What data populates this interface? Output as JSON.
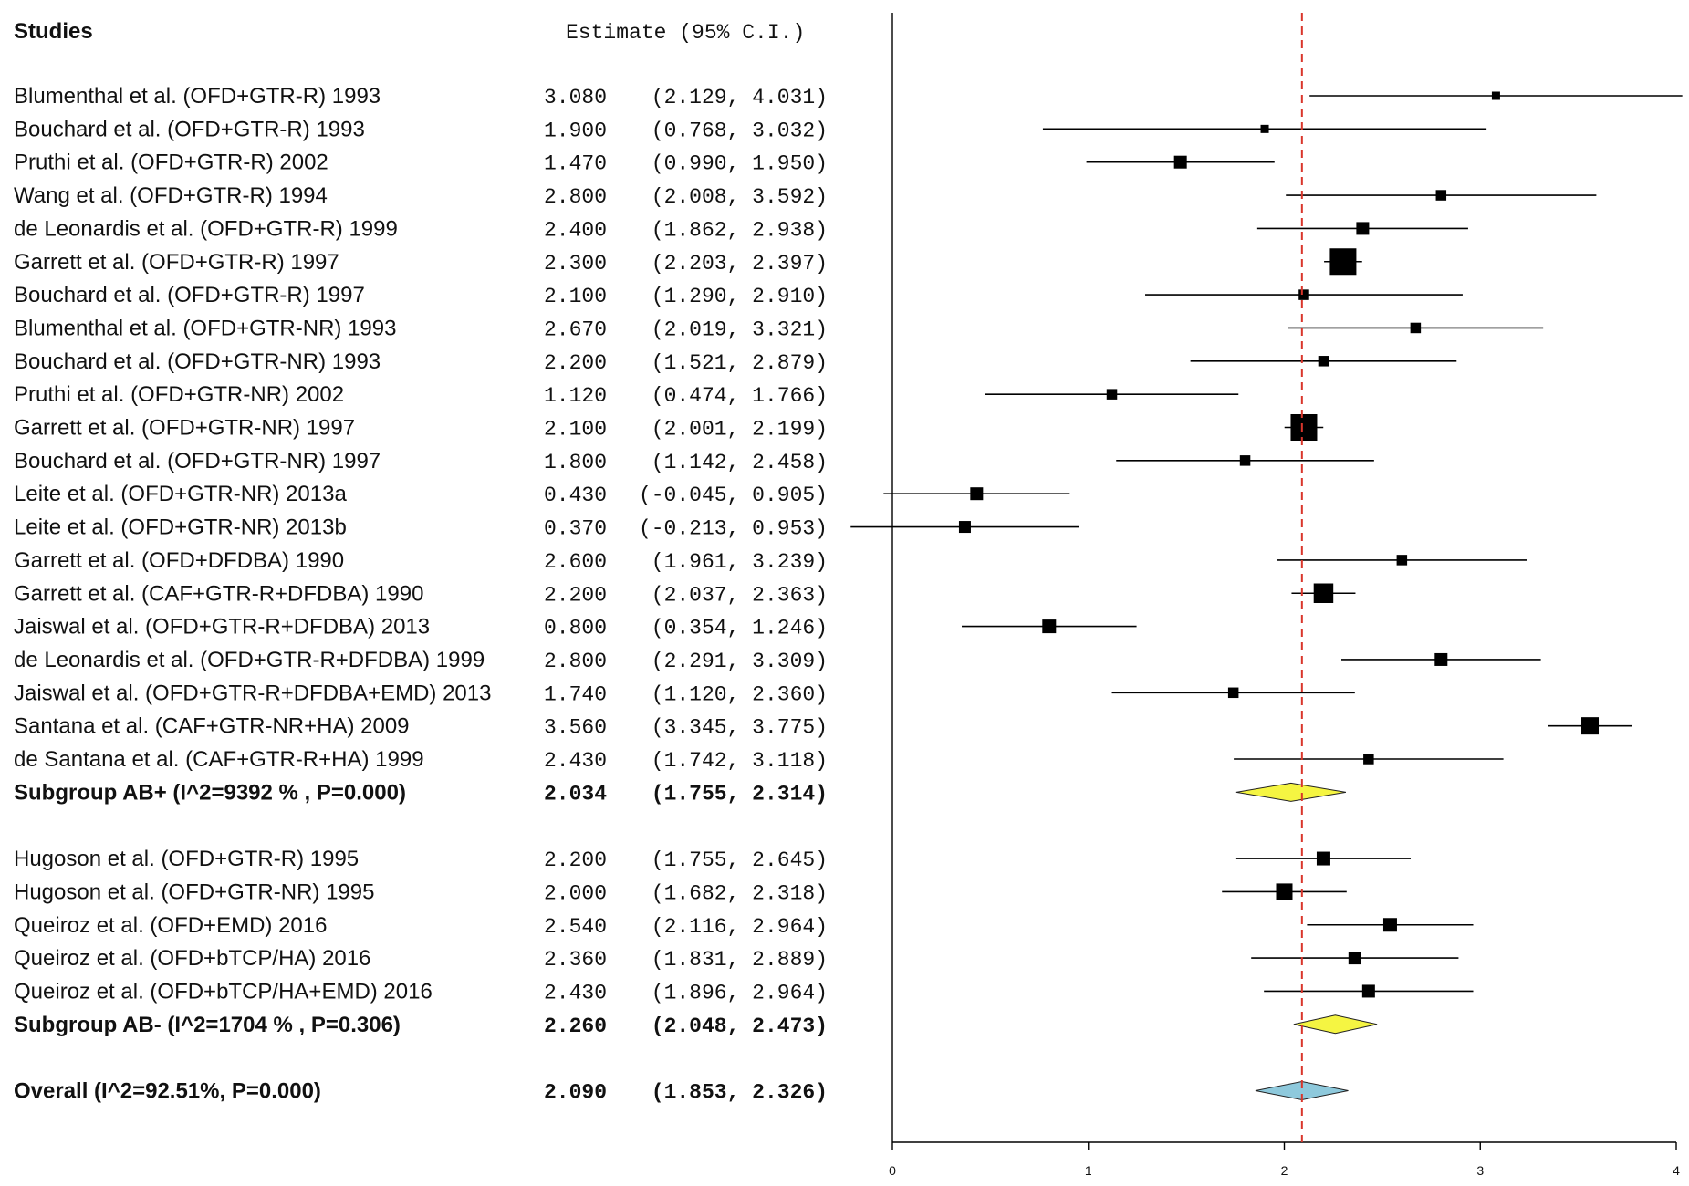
{
  "chart_data": {
    "type": "forest",
    "header_studies": "Studies",
    "header_estimate": "Estimate (95% C.I.)",
    "x_ticks": [
      "0",
      "1",
      "2",
      "3",
      "4"
    ],
    "xlim": [
      0,
      4
    ],
    "reference_line": 2.09,
    "rows": [
      {
        "kind": "study",
        "label": "Blumenthal et al. (OFD+GTR-R) 1993",
        "est": "3.080",
        "ci": "(2.129, 4.031)",
        "value": 3.08,
        "lo": 2.129,
        "hi": 4.031,
        "weight": 1
      },
      {
        "kind": "study",
        "label": "Bouchard et al. (OFD+GTR-R) 1993",
        "est": "1.900",
        "ci": "(0.768, 3.032)",
        "value": 1.9,
        "lo": 0.768,
        "hi": 3.032,
        "weight": 1
      },
      {
        "kind": "study",
        "label": "Pruthi et al. (OFD+GTR-R) 2002",
        "est": "1.470",
        "ci": "(0.990, 1.950)",
        "value": 1.47,
        "lo": 0.99,
        "hi": 1.95,
        "weight": 2
      },
      {
        "kind": "study",
        "label": "Wang et al. (OFD+GTR-R) 1994",
        "est": "2.800",
        "ci": "(2.008, 3.592)",
        "value": 2.8,
        "lo": 2.008,
        "hi": 3.592,
        "weight": 1.5
      },
      {
        "kind": "study",
        "label": "de Leonardis et al. (OFD+GTR-R) 1999",
        "est": "2.400",
        "ci": "(1.862, 2.938)",
        "value": 2.4,
        "lo": 1.862,
        "hi": 2.938,
        "weight": 2
      },
      {
        "kind": "study",
        "label": "Garrett et al. (OFD+GTR-R) 1997",
        "est": "2.300",
        "ci": "(2.203, 2.397)",
        "value": 2.3,
        "lo": 2.203,
        "hi": 2.397,
        "weight": 5
      },
      {
        "kind": "study",
        "label": "Bouchard et al. (OFD+GTR-R) 1997",
        "est": "2.100",
        "ci": "(1.290, 2.910)",
        "value": 2.1,
        "lo": 1.29,
        "hi": 2.91,
        "weight": 1.5
      },
      {
        "kind": "study",
        "label": "Blumenthal et al. (OFD+GTR-NR) 1993",
        "est": "2.670",
        "ci": "(2.019, 3.321)",
        "value": 2.67,
        "lo": 2.019,
        "hi": 3.321,
        "weight": 1.5
      },
      {
        "kind": "study",
        "label": "Bouchard et al. (OFD+GTR-NR) 1993",
        "est": "2.200",
        "ci": "(1.521, 2.879)",
        "value": 2.2,
        "lo": 1.521,
        "hi": 2.879,
        "weight": 1.5
      },
      {
        "kind": "study",
        "label": "Pruthi et al. (OFD+GTR-NR) 2002",
        "est": "1.120",
        "ci": "(0.474, 1.766)",
        "value": 1.12,
        "lo": 0.474,
        "hi": 1.766,
        "weight": 1.5
      },
      {
        "kind": "study",
        "label": "Garrett et al. (OFD+GTR-NR) 1997",
        "est": "2.100",
        "ci": "(2.001, 2.199)",
        "value": 2.1,
        "lo": 2.001,
        "hi": 2.199,
        "weight": 5
      },
      {
        "kind": "study",
        "label": "Bouchard et al. (OFD+GTR-NR) 1997",
        "est": "1.800",
        "ci": "(1.142, 2.458)",
        "value": 1.8,
        "lo": 1.142,
        "hi": 2.458,
        "weight": 1.5
      },
      {
        "kind": "study",
        "label": "Leite et al. (OFD+GTR-NR) 2013a",
        "est": "0.430",
        "ci": "(-0.045, 0.905)",
        "value": 0.43,
        "lo": -0.045,
        "hi": 0.905,
        "weight": 2
      },
      {
        "kind": "study",
        "label": "Leite et al. (OFD+GTR-NR) 2013b",
        "est": "0.370",
        "ci": "(-0.213, 0.953)",
        "value": 0.37,
        "lo": -0.213,
        "hi": 0.953,
        "weight": 1.8
      },
      {
        "kind": "study",
        "label": "Garrett et al. (OFD+DFDBA) 1990",
        "est": "2.600",
        "ci": "(1.961, 3.239)",
        "value": 2.6,
        "lo": 1.961,
        "hi": 3.239,
        "weight": 1.5
      },
      {
        "kind": "study",
        "label": "Garrett et al. (CAF+GTR-R+DFDBA) 1990",
        "est": "2.200",
        "ci": "(2.037, 2.363)",
        "value": 2.2,
        "lo": 2.037,
        "hi": 2.363,
        "weight": 3.5
      },
      {
        "kind": "study",
        "label": "Jaiswal et al. (OFD+GTR-R+DFDBA) 2013",
        "est": "0.800",
        "ci": "(0.354, 1.246)",
        "value": 0.8,
        "lo": 0.354,
        "hi": 1.246,
        "weight": 2.2
      },
      {
        "kind": "study",
        "label": "de Leonardis et al. (OFD+GTR-R+DFDBA) 1999",
        "est": "2.800",
        "ci": "(2.291, 3.309)",
        "value": 2.8,
        "lo": 2.291,
        "hi": 3.309,
        "weight": 2
      },
      {
        "kind": "study",
        "label": "Jaiswal et al. (OFD+GTR-R+DFDBA+EMD) 2013",
        "est": "1.740",
        "ci": "(1.120, 2.360)",
        "value": 1.74,
        "lo": 1.12,
        "hi": 2.36,
        "weight": 1.5
      },
      {
        "kind": "study",
        "label": "Santana et al. (CAF+GTR-NR+HA) 2009",
        "est": "3.560",
        "ci": "(3.345, 3.775)",
        "value": 3.56,
        "lo": 3.345,
        "hi": 3.775,
        "weight": 3
      },
      {
        "kind": "study",
        "label": "de Santana et al. (CAF+GTR-R+HA) 1999",
        "est": "2.430",
        "ci": "(1.742, 3.118)",
        "value": 2.43,
        "lo": 1.742,
        "hi": 3.118,
        "weight": 1.5
      },
      {
        "kind": "subgroup",
        "label": "Subgroup AB+ (I^2=9392 % , P=0.000)",
        "est": "2.034",
        "ci": "(1.755, 2.314)",
        "value": 2.034,
        "lo": 1.755,
        "hi": 2.314,
        "color": "#f5f542"
      },
      {
        "kind": "blank"
      },
      {
        "kind": "study",
        "label": "Hugoson et al. (OFD+GTR-R) 1995",
        "est": "2.200",
        "ci": "(1.755, 2.645)",
        "value": 2.2,
        "lo": 1.755,
        "hi": 2.645,
        "weight": 2.2
      },
      {
        "kind": "study",
        "label": "Hugoson et al. (OFD+GTR-NR) 1995",
        "est": "2.000",
        "ci": "(1.682, 2.318)",
        "value": 2.0,
        "lo": 1.682,
        "hi": 2.318,
        "weight": 2.8
      },
      {
        "kind": "study",
        "label": "Queiroz et al. (OFD+EMD) 2016",
        "est": "2.540",
        "ci": "(2.116, 2.964)",
        "value": 2.54,
        "lo": 2.116,
        "hi": 2.964,
        "weight": 2.2
      },
      {
        "kind": "study",
        "label": "Queiroz et al. (OFD+bTCP/HA) 2016",
        "est": "2.360",
        "ci": "(1.831, 2.889)",
        "value": 2.36,
        "lo": 1.831,
        "hi": 2.889,
        "weight": 2
      },
      {
        "kind": "study",
        "label": "Queiroz et al. (OFD+bTCP/HA+EMD) 2016",
        "est": "2.430",
        "ci": "(1.896, 2.964)",
        "value": 2.43,
        "lo": 1.896,
        "hi": 2.964,
        "weight": 2
      },
      {
        "kind": "subgroup",
        "label": "Subgroup AB- (I^2=1704 % , P=0.306)",
        "est": "2.260",
        "ci": "(2.048, 2.473)",
        "value": 2.26,
        "lo": 2.048,
        "hi": 2.473,
        "color": "#f5f542"
      },
      {
        "kind": "blank"
      },
      {
        "kind": "overall",
        "label": "Overall (I^2=92.51%, P=0.000)",
        "est": "2.090",
        "ci": "(1.853, 2.326)",
        "value": 2.09,
        "lo": 1.853,
        "hi": 2.326,
        "color": "#8ec9dc"
      }
    ]
  }
}
